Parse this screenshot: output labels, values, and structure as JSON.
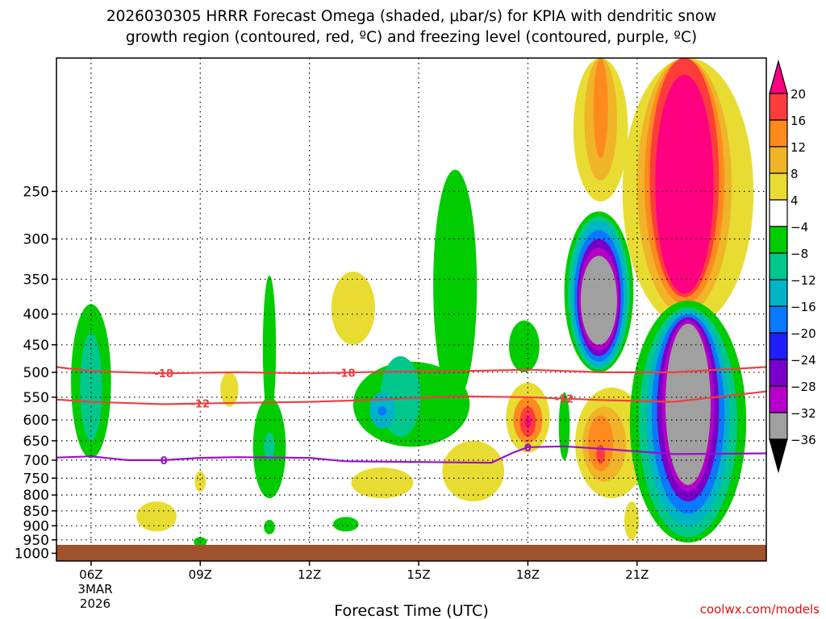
{
  "chart_data": {
    "type": "heatmap",
    "title_line1": "2026030305 HRRR Forecast Omega (shaded, μbar/s) for KPIA with dendritic snow",
    "title_line2": "growth region (contoured, red, ºC) and freezing level (contoured, purple, ºC)",
    "xlabel": "Forecast Time (UTC)",
    "ylabel": "",
    "credit": "coolwx.com/models",
    "x_range_hours": [
      5.05,
      24.55
    ],
    "y_range_hpa": [
      150,
      1030
    ],
    "y_ticks": [
      250,
      300,
      350,
      400,
      450,
      500,
      550,
      600,
      650,
      700,
      750,
      800,
      850,
      900,
      950,
      1000
    ],
    "y_tick_labels": [
      "250",
      "300",
      "350",
      "400",
      "450",
      "500",
      "550",
      "600",
      "650",
      "700",
      "750",
      "800",
      "850",
      "900",
      "950",
      "1000"
    ],
    "x_ticks": [
      6,
      9,
      12,
      15,
      18,
      21
    ],
    "x_tick_labels": [
      "06Z",
      "09Z",
      "12Z",
      "15Z",
      "18Z",
      "21Z"
    ],
    "date_label_line1": "3MAR",
    "date_label_line2": "2026",
    "ground_color": "#a0522d",
    "colorbar": {
      "labels": [
        "20",
        "16",
        "12",
        "8",
        "4",
        "−4",
        "−8",
        "−12",
        "−16",
        "−20",
        "−24",
        "−28",
        "−32",
        "−36"
      ],
      "colors": [
        "#ff0080",
        "#ff3c3c",
        "#ff8a1e",
        "#f0b428",
        "#e8dc32",
        "#ffffff",
        "#00cc00",
        "#00c88c",
        "#00b4c8",
        "#0a78ff",
        "#1e1eff",
        "#7800c8",
        "#b400c8",
        "#a0a0a0",
        "#000000"
      ]
    },
    "omega_features": [
      {
        "name": "green-06z",
        "level": -8,
        "x": 6.0,
        "ptop": 385,
        "pbot": 695,
        "half_width_h": 0.55
      },
      {
        "name": "teal-06z",
        "level": -12,
        "x": 6.0,
        "ptop": 430,
        "pbot": 650,
        "half_width_h": 0.3
      },
      {
        "name": "green-11z-upper",
        "level": -8,
        "x": 10.9,
        "ptop": 345,
        "pbot": 600,
        "half_width_h": 0.18
      },
      {
        "name": "green-11z-lower",
        "level": -8,
        "x": 10.9,
        "ptop": 550,
        "pbot": 810,
        "half_width_h": 0.45
      },
      {
        "name": "teal-11z",
        "level": -12,
        "x": 10.9,
        "ptop": 630,
        "pbot": 700,
        "half_width_h": 0.15
      },
      {
        "name": "green-band-14z-16z",
        "level": -8,
        "x": 14.8,
        "ptop": 480,
        "pbot": 665,
        "half_width_h": 1.6
      },
      {
        "name": "green-plume-16z",
        "level": -8,
        "x": 16.0,
        "ptop": 230,
        "pbot": 560,
        "half_width_h": 0.6
      },
      {
        "name": "teal-14z",
        "level": -12,
        "x": 14.5,
        "ptop": 470,
        "pbot": 640,
        "half_width_h": 0.55
      },
      {
        "name": "cyan-14z",
        "level": -16,
        "x": 14.0,
        "ptop": 540,
        "pbot": 620,
        "half_width_h": 0.35
      },
      {
        "name": "blue-14z",
        "level": -20,
        "x": 14.0,
        "ptop": 570,
        "pbot": 590,
        "half_width_h": 0.12
      },
      {
        "name": "yellow-13z-upper",
        "level": 4,
        "x": 13.2,
        "ptop": 340,
        "pbot": 450,
        "half_width_h": 0.6
      },
      {
        "name": "yellow-17z-lower",
        "level": 4,
        "x": 16.5,
        "ptop": 650,
        "pbot": 820,
        "half_width_h": 0.85
      },
      {
        "name": "yellow-14z-lower",
        "level": 4,
        "x": 14.0,
        "ptop": 720,
        "pbot": 810,
        "half_width_h": 0.85
      },
      {
        "name": "yellow-07z",
        "level": 4,
        "x": 7.8,
        "ptop": 820,
        "pbot": 920,
        "half_width_h": 0.55
      },
      {
        "name": "yellow-10z",
        "level": 4,
        "x": 9.8,
        "ptop": 500,
        "pbot": 570,
        "half_width_h": 0.25
      },
      {
        "name": "yellow-09z",
        "level": 4,
        "x": 9.0,
        "ptop": 730,
        "pbot": 790,
        "half_width_h": 0.15
      },
      {
        "name": "green-09z",
        "level": -8,
        "x": 9.0,
        "ptop": 940,
        "pbot": 975,
        "half_width_h": 0.18
      },
      {
        "name": "green-11z-small",
        "level": -8,
        "x": 10.9,
        "ptop": 880,
        "pbot": 930,
        "half_width_h": 0.15
      },
      {
        "name": "green-13z-small",
        "level": -8,
        "x": 13.0,
        "ptop": 870,
        "pbot": 920,
        "half_width_h": 0.35
      },
      {
        "name": "green-18z",
        "level": -8,
        "x": 17.9,
        "ptop": 410,
        "pbot": 500,
        "half_width_h": 0.42
      },
      {
        "name": "yellow-18z",
        "level": 4,
        "x": 18.0,
        "ptop": 520,
        "pbot": 680,
        "half_width_h": 0.6
      },
      {
        "name": "orange-18z",
        "level": 12,
        "x": 18.0,
        "ptop": 550,
        "pbot": 655,
        "half_width_h": 0.4
      },
      {
        "name": "red-18z",
        "level": 16,
        "x": 18.0,
        "ptop": 570,
        "pbot": 640,
        "half_width_h": 0.22
      },
      {
        "name": "pink-18z",
        "level": 20,
        "x": 18.0,
        "ptop": 590,
        "pbot": 620,
        "half_width_h": 0.08
      },
      {
        "name": "green-19z-thin",
        "level": -8,
        "x": 19.0,
        "ptop": 540,
        "pbot": 700,
        "half_width_h": 0.15
      },
      {
        "name": "yellow-20z-top",
        "level": 4,
        "x": 20.0,
        "ptop": 150,
        "pbot": 260,
        "half_width_h": 0.75
      },
      {
        "name": "gold-20z-top",
        "level": 8,
        "x": 20.0,
        "ptop": 150,
        "pbot": 240,
        "half_width_h": 0.45
      },
      {
        "name": "orange-20z-top",
        "level": 12,
        "x": 20.0,
        "ptop": 150,
        "pbot": 220,
        "half_width_h": 0.2
      },
      {
        "name": "yellow-20z-low",
        "level": 4,
        "x": 20.3,
        "ptop": 530,
        "pbot": 810,
        "half_width_h": 1.0
      },
      {
        "name": "gold-20z-low",
        "level": 8,
        "x": 20.1,
        "ptop": 570,
        "pbot": 760,
        "half_width_h": 0.6
      },
      {
        "name": "orange-20z-low",
        "level": 12,
        "x": 20.0,
        "ptop": 590,
        "pbot": 730,
        "half_width_h": 0.35
      },
      {
        "name": "red-20z-low",
        "level": 16,
        "x": 20.0,
        "ptop": 660,
        "pbot": 710,
        "half_width_h": 0.12
      },
      {
        "name": "yellow-21z-bottom",
        "level": 4,
        "x": 20.85,
        "ptop": 820,
        "pbot": 950,
        "half_width_h": 0.2
      },
      {
        "name": "green-20z-core",
        "level": -8,
        "x": 19.95,
        "ptop": 270,
        "pbot": 500,
        "half_width_h": 0.95
      },
      {
        "name": "teal-20z-core",
        "level": -12,
        "x": 19.95,
        "ptop": 275,
        "pbot": 495,
        "half_width_h": 0.85
      },
      {
        "name": "cyan-20z-core",
        "level": -16,
        "x": 19.95,
        "ptop": 280,
        "pbot": 490,
        "half_width_h": 0.76
      },
      {
        "name": "blue-20z-core",
        "level": -20,
        "x": 19.95,
        "ptop": 290,
        "pbot": 480,
        "half_width_h": 0.68
      },
      {
        "name": "purple-20z-core",
        "level": -28,
        "x": 19.95,
        "ptop": 300,
        "pbot": 470,
        "half_width_h": 0.6
      },
      {
        "name": "gray-20z-core",
        "level": -32,
        "x": 19.95,
        "ptop": 310,
        "pbot": 460,
        "half_width_h": 0.55
      },
      {
        "name": "black-20z-core",
        "level": -36,
        "x": 19.95,
        "ptop": 320,
        "pbot": 450,
        "half_width_h": 0.5
      },
      {
        "name": "yellow-22z-top",
        "level": 4,
        "x": 22.4,
        "ptop": 150,
        "pbot": 420,
        "half_width_h": 1.8
      },
      {
        "name": "gold-22z-top",
        "level": 8,
        "x": 22.3,
        "ptop": 150,
        "pbot": 400,
        "half_width_h": 1.3
      },
      {
        "name": "orange-22z-top",
        "level": 12,
        "x": 22.3,
        "ptop": 150,
        "pbot": 385,
        "half_width_h": 1.1
      },
      {
        "name": "red-22z-top",
        "level": 16,
        "x": 22.3,
        "ptop": 150,
        "pbot": 375,
        "half_width_h": 0.95
      },
      {
        "name": "pink-22z-top",
        "level": 20,
        "x": 22.3,
        "ptop": 160,
        "pbot": 370,
        "half_width_h": 0.8
      },
      {
        "name": "green-22z-low",
        "level": -8,
        "x": 22.4,
        "ptop": 380,
        "pbot": 960,
        "half_width_h": 1.6
      },
      {
        "name": "teal-22z-low",
        "level": -12,
        "x": 22.4,
        "ptop": 390,
        "pbot": 940,
        "half_width_h": 1.35
      },
      {
        "name": "cyan-22z-low",
        "level": -16,
        "x": 22.4,
        "ptop": 395,
        "pbot": 900,
        "half_width_h": 1.15
      },
      {
        "name": "blue-22z-low",
        "level": -20,
        "x": 22.4,
        "ptop": 400,
        "pbot": 860,
        "half_width_h": 1.0
      },
      {
        "name": "purple-22z-low",
        "level": -28,
        "x": 22.4,
        "ptop": 405,
        "pbot": 820,
        "half_width_h": 0.85
      },
      {
        "name": "gray-22z-low",
        "level": -32,
        "x": 22.4,
        "ptop": 410,
        "pbot": 790,
        "half_width_h": 0.72
      },
      {
        "name": "black-22z-low",
        "level": -36,
        "x": 22.4,
        "ptop": 415,
        "pbot": 770,
        "half_width_h": 0.62
      }
    ],
    "dgz_contours": [
      {
        "label": "-18",
        "label_at": [
          8.0,
          13.0
        ],
        "points": [
          [
            5.05,
            490
          ],
          [
            6,
            498
          ],
          [
            8,
            502
          ],
          [
            10,
            500
          ],
          [
            12,
            502
          ],
          [
            14,
            499
          ],
          [
            16,
            498
          ],
          [
            18,
            495
          ],
          [
            20,
            500
          ],
          [
            22,
            500
          ],
          [
            24.55,
            490
          ]
        ]
      },
      {
        "label": "-12",
        "label_at": [
          9.0,
          19.0
        ],
        "points": [
          [
            5.05,
            555
          ],
          [
            6,
            560
          ],
          [
            8,
            565
          ],
          [
            10,
            562
          ],
          [
            12,
            560
          ],
          [
            14,
            555
          ],
          [
            16,
            548
          ],
          [
            18,
            550
          ],
          [
            20,
            556
          ],
          [
            22,
            560
          ],
          [
            24.55,
            538
          ]
        ]
      }
    ],
    "freezing_contour": {
      "label": "0",
      "label_at": [
        8.0,
        18.0
      ],
      "points": [
        [
          5.05,
          693
        ],
        [
          6,
          690
        ],
        [
          7,
          700
        ],
        [
          8,
          700
        ],
        [
          9,
          694
        ],
        [
          10,
          692
        ],
        [
          11,
          693
        ],
        [
          12,
          694
        ],
        [
          13,
          703
        ],
        [
          14,
          704
        ],
        [
          15,
          705
        ],
        [
          16,
          706
        ],
        [
          17,
          707
        ],
        [
          17.6,
          680
        ],
        [
          18,
          666
        ],
        [
          19,
          664
        ],
        [
          20,
          670
        ],
        [
          21,
          677
        ],
        [
          22,
          684
        ],
        [
          24.55,
          682
        ]
      ]
    }
  }
}
